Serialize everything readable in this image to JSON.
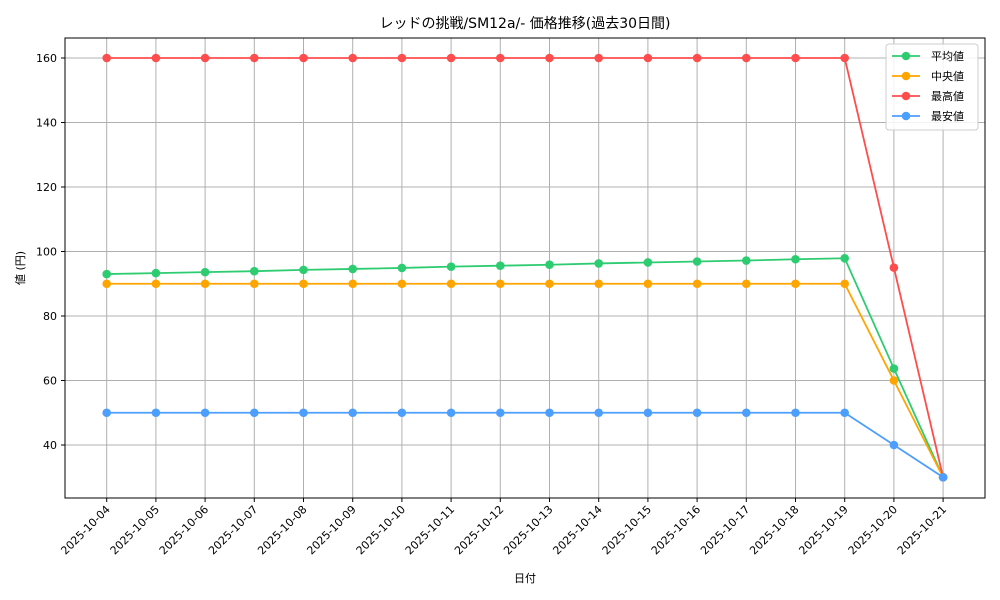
{
  "chart_data": {
    "type": "line",
    "title": "レッドの挑戦/SM12a/- 価格推移(過去30日間)",
    "xlabel": "日付",
    "ylabel": "値 (円)",
    "ylim": [
      23.4,
      166.2
    ],
    "yticks": [
      40,
      60,
      80,
      100,
      120,
      140,
      160
    ],
    "grid": true,
    "legend_position": "upper right",
    "x": [
      "2025-10-04",
      "2025-10-05",
      "2025-10-06",
      "2025-10-07",
      "2025-10-08",
      "2025-10-09",
      "2025-10-10",
      "2025-10-11",
      "2025-10-12",
      "2025-10-13",
      "2025-10-14",
      "2025-10-15",
      "2025-10-16",
      "2025-10-17",
      "2025-10-18",
      "2025-10-19",
      "2025-10-20",
      "2025-10-21"
    ],
    "series": [
      {
        "name": "平均値",
        "color": "#2ecc71",
        "values": [
          93.0,
          93.3,
          93.6,
          93.9,
          94.3,
          94.6,
          94.9,
          95.3,
          95.6,
          95.9,
          96.3,
          96.6,
          96.9,
          97.2,
          97.6,
          97.9,
          63.7,
          30
        ]
      },
      {
        "name": "中央値",
        "color": "#ffa500",
        "values": [
          90,
          90,
          90,
          90,
          90,
          90,
          90,
          90,
          90,
          90,
          90,
          90,
          90,
          90,
          90,
          90,
          60,
          30
        ]
      },
      {
        "name": "最高値",
        "color": "#ff4d4d",
        "values": [
          160,
          160,
          160,
          160,
          160,
          160,
          160,
          160,
          160,
          160,
          160,
          160,
          160,
          160,
          160,
          160,
          95,
          30
        ]
      },
      {
        "name": "最安値",
        "color": "#4d9fff",
        "values": [
          50,
          50,
          50,
          50,
          50,
          50,
          50,
          50,
          50,
          50,
          50,
          50,
          50,
          50,
          50,
          50,
          40,
          30
        ]
      }
    ]
  }
}
